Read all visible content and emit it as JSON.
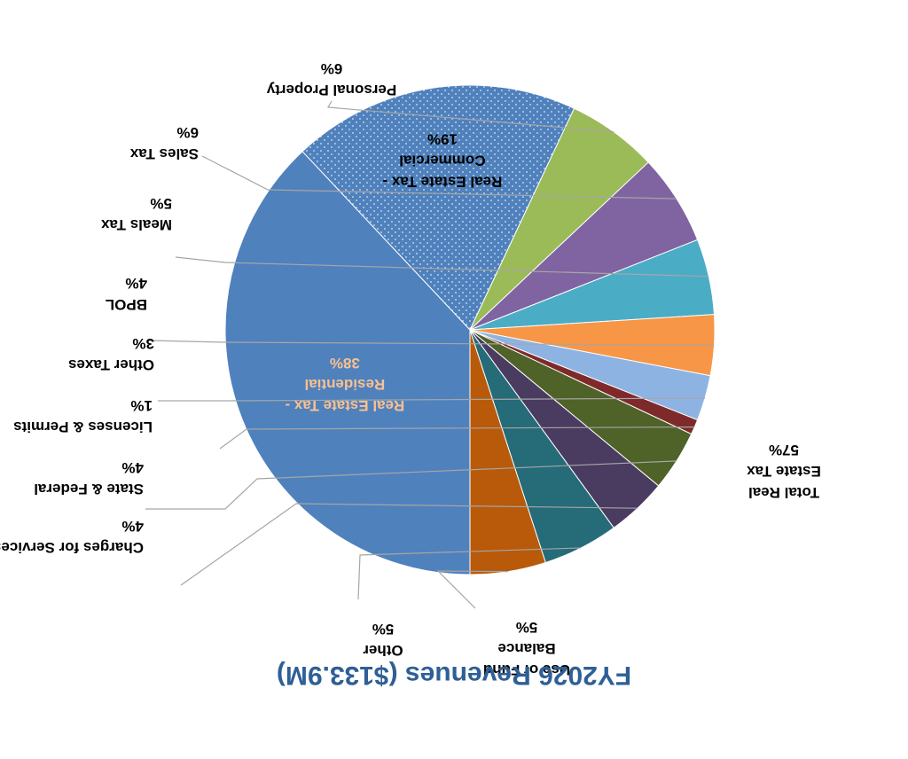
{
  "chart_data": {
    "type": "pie",
    "title": "FY2026 Revenues ($133.9M)",
    "slices": [
      {
        "label": "Real Estate Tax - Residential",
        "value": 38,
        "display": "38%",
        "color": "#4f81bd",
        "pattern": "solid",
        "label_color": "#fac08f"
      },
      {
        "label": "Real Estate Tax - Commercial",
        "value": 19,
        "display": "19%",
        "color": "#4f81bd",
        "pattern": "dotted",
        "label_color": "#000000"
      },
      {
        "label": "Personal Property",
        "value": 6,
        "display": "6%",
        "color": "#9bbb59"
      },
      {
        "label": "Sales Tax",
        "value": 6,
        "display": "6%",
        "color": "#8064a2"
      },
      {
        "label": "Meals Tax",
        "value": 5,
        "display": "5%",
        "color": "#4bacc6"
      },
      {
        "label": "BPOL",
        "value": 4,
        "display": "4%",
        "color": "#f79646"
      },
      {
        "label": "Other Taxes",
        "value": 3,
        "display": "3%",
        "color": "#8db3e2"
      },
      {
        "label": "Licenses & Permits",
        "value": 1,
        "display": "1%",
        "color": "#7f2a2a"
      },
      {
        "label": "State & Federal",
        "value": 4,
        "display": "4%",
        "color": "#4f6228"
      },
      {
        "label": "Charges for Services",
        "value": 4,
        "display": "4%",
        "color": "#4a3b60"
      },
      {
        "label": "Other",
        "value": 5,
        "display": "5%",
        "color": "#256b78"
      },
      {
        "label": "Use of Fund Balance",
        "value": 5,
        "display": "5%",
        "color": "#b85a0a"
      }
    ],
    "group_label": {
      "text": "Total Real Estate Tax",
      "display": "57%"
    }
  }
}
